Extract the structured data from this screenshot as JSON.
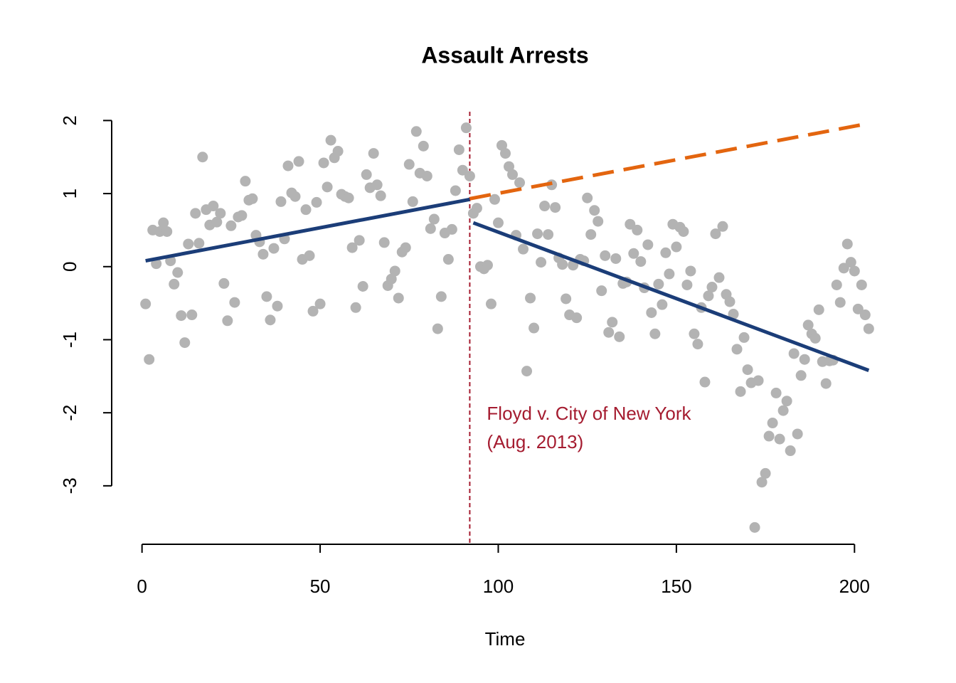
{
  "chart_data": {
    "type": "scatter",
    "title": "Assault Arrests",
    "x_label": "Time",
    "x": [
      1,
      2,
      3,
      4,
      5,
      6,
      7,
      8,
      9,
      10,
      11,
      12,
      13,
      14,
      15,
      16,
      17,
      18,
      19,
      20,
      21,
      22,
      23,
      24,
      25,
      26,
      27,
      28,
      29,
      30,
      31,
      32,
      33,
      34,
      35,
      36,
      37,
      38,
      39,
      40,
      41,
      42,
      43,
      44,
      45,
      46,
      47,
      48,
      49,
      50,
      51,
      52,
      53,
      54,
      55,
      56,
      57,
      58,
      59,
      60,
      61,
      62,
      63,
      64,
      65,
      66,
      67,
      68,
      69,
      70,
      71,
      72,
      73,
      74,
      75,
      76,
      77,
      78,
      79,
      80,
      81,
      82,
      83,
      84,
      85,
      86,
      87,
      88,
      89,
      90,
      91,
      92,
      93,
      94,
      95,
      96,
      97,
      98,
      99,
      100,
      101,
      102,
      103,
      104,
      105,
      106,
      107,
      108,
      109,
      110,
      111,
      112,
      113,
      114,
      115,
      116,
      117,
      118,
      119,
      120,
      121,
      122,
      123,
      124,
      125,
      126,
      127,
      128,
      129,
      130,
      131,
      132,
      133,
      134,
      135,
      136,
      137,
      138,
      139,
      140,
      141,
      142,
      143,
      144,
      145,
      146,
      147,
      148,
      149,
      150,
      151,
      152,
      153,
      154,
      155,
      156,
      157,
      158,
      159,
      160,
      161,
      162,
      163,
      164,
      165,
      166,
      167,
      168,
      169,
      170,
      171,
      172,
      173,
      174,
      175,
      176,
      177,
      178,
      179,
      180,
      181,
      182,
      183,
      184,
      185,
      186,
      187,
      188,
      189,
      190,
      191,
      192,
      193,
      194,
      195,
      196,
      197,
      198,
      199,
      200,
      201,
      202,
      203,
      204
    ],
    "values": [
      -0.51,
      -1.27,
      0.5,
      0.04,
      0.48,
      0.6,
      0.48,
      0.08,
      -0.24,
      -0.08,
      -0.67,
      -1.04,
      0.31,
      -0.66,
      0.73,
      0.32,
      1.5,
      0.78,
      0.57,
      0.83,
      0.61,
      0.73,
      -0.23,
      -0.74,
      0.56,
      -0.49,
      0.68,
      0.7,
      1.17,
      0.91,
      0.93,
      0.43,
      0.34,
      0.17,
      -0.41,
      -0.73,
      0.25,
      -0.54,
      0.89,
      0.38,
      1.38,
      1.01,
      0.96,
      1.44,
      0.1,
      0.78,
      0.15,
      -0.61,
      0.88,
      -0.51,
      1.42,
      1.09,
      1.73,
      1.49,
      1.58,
      0.99,
      0.96,
      0.94,
      0.26,
      -0.56,
      0.36,
      -0.27,
      1.26,
      1.08,
      1.55,
      1.12,
      0.97,
      0.33,
      -0.26,
      -0.17,
      -0.06,
      -0.43,
      0.2,
      0.26,
      1.4,
      0.89,
      1.85,
      1.28,
      1.65,
      1.24,
      0.52,
      0.65,
      -0.85,
      -0.41,
      0.46,
      0.1,
      0.51,
      1.04,
      1.6,
      1.32,
      1.9,
      1.24,
      0.73,
      0.8,
      0.0,
      -0.03,
      0.02,
      -0.51,
      0.92,
      0.6,
      1.66,
      1.55,
      1.37,
      1.26,
      0.43,
      1.15,
      0.24,
      -1.43,
      -0.43,
      -0.84,
      0.45,
      0.06,
      0.83,
      0.44,
      1.12,
      0.81,
      0.12,
      0.03,
      -0.44,
      -0.66,
      0.02,
      -0.7,
      0.1,
      0.08,
      0.94,
      0.44,
      0.77,
      0.62,
      -0.33,
      0.15,
      -0.9,
      -0.76,
      0.11,
      -0.96,
      -0.23,
      -0.21,
      0.58,
      0.18,
      0.5,
      0.07,
      -0.29,
      0.3,
      -0.63,
      -0.92,
      -0.24,
      -0.52,
      0.19,
      -0.1,
      0.58,
      0.27,
      0.54,
      0.48,
      -0.25,
      -0.06,
      -0.92,
      -1.06,
      -0.56,
      -1.58,
      -0.4,
      -0.28,
      0.45,
      -0.15,
      0.55,
      -0.38,
      -0.48,
      -0.65,
      -1.13,
      -1.71,
      -0.97,
      -1.41,
      -1.59,
      -3.57,
      -1.56,
      -2.95,
      -2.83,
      -2.32,
      -2.14,
      -1.73,
      -2.36,
      -1.97,
      -1.84,
      -2.52,
      -1.19,
      -2.29,
      -1.49,
      -1.27,
      -0.8,
      -0.92,
      -0.98,
      -0.59,
      -1.3,
      -1.6,
      -1.29,
      -1.28,
      -0.25,
      -0.49,
      -0.02,
      0.31,
      0.06,
      -0.06,
      -0.58,
      -0.25,
      -0.66,
      -0.85
    ],
    "color": "#b3b3b3",
    "lines": [
      {
        "x": [
          1,
          92
        ],
        "values": [
          0.08,
          0.92
        ],
        "color": "#1b3d78",
        "dashed": false
      },
      {
        "x": [
          93,
          204
        ],
        "values": [
          0.6,
          -1.42
        ],
        "color": "#1b3d78",
        "dashed": false
      },
      {
        "x": [
          92,
          204
        ],
        "values": [
          0.93,
          1.96
        ],
        "color": "#e3650f",
        "dashed": true
      }
    ],
    "vline": {
      "x": 92,
      "color": "#a51c30"
    },
    "annotation": [
      "Floyd v. City of New York",
      "(Aug. 2013)"
    ],
    "xlim": [
      -7.12,
      212.12
    ],
    "xticks": [
      0,
      50,
      100,
      150,
      200
    ],
    "ylim": [
      -3.8,
      2.15
    ],
    "yticks": [
      -3,
      -2,
      -1,
      0,
      1,
      2
    ]
  }
}
